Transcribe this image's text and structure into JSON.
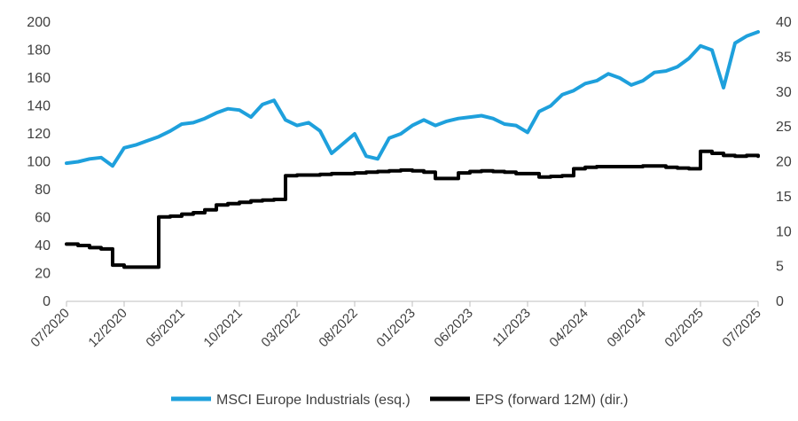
{
  "chart_data": {
    "type": "line",
    "title": "",
    "xlabel": "",
    "ylabel": "",
    "x_ticks": [
      "07/2020",
      "12/2020",
      "05/2021",
      "10/2021",
      "03/2022",
      "08/2022",
      "01/2023",
      "06/2023",
      "11/2023",
      "04/2024",
      "09/2024",
      "02/2025",
      "07/2025"
    ],
    "y_left": {
      "min": 0,
      "max": 200,
      "step": 20,
      "ticks": [
        "0",
        "20",
        "40",
        "60",
        "80",
        "100",
        "120",
        "140",
        "160",
        "180",
        "200"
      ]
    },
    "y_right": {
      "min": 0,
      "max": 40,
      "step": 5,
      "ticks": [
        "0",
        "5",
        "10",
        "15",
        "20",
        "25",
        "30",
        "35",
        "40"
      ]
    },
    "grid": false,
    "legend_position": "bottom",
    "series": [
      {
        "name": "MSCI Europe Industrials (esq.)",
        "axis": "left",
        "color": "#1ea0dc",
        "x": [
          "07/2020",
          "08/2020",
          "09/2020",
          "10/2020",
          "11/2020",
          "12/2020",
          "01/2021",
          "02/2021",
          "03/2021",
          "04/2021",
          "05/2021",
          "06/2021",
          "07/2021",
          "08/2021",
          "09/2021",
          "10/2021",
          "11/2021",
          "12/2021",
          "01/2022",
          "02/2022",
          "03/2022",
          "04/2022",
          "05/2022",
          "06/2022",
          "07/2022",
          "08/2022",
          "09/2022",
          "10/2022",
          "11/2022",
          "12/2022",
          "01/2023",
          "02/2023",
          "03/2023",
          "04/2023",
          "05/2023",
          "06/2023",
          "07/2023",
          "08/2023",
          "09/2023",
          "10/2023",
          "11/2023",
          "12/2023",
          "01/2024",
          "02/2024",
          "03/2024",
          "04/2024",
          "05/2024",
          "06/2024",
          "07/2024",
          "08/2024",
          "09/2024",
          "10/2024",
          "11/2024",
          "12/2024",
          "01/2025",
          "02/2025",
          "03/2025",
          "04/2025",
          "05/2025",
          "06/2025",
          "07/2025"
        ],
        "values": [
          99,
          100,
          102,
          103,
          97,
          110,
          112,
          115,
          118,
          122,
          127,
          128,
          131,
          135,
          138,
          137,
          132,
          141,
          144,
          130,
          126,
          128,
          122,
          106,
          113,
          120,
          104,
          102,
          117,
          120,
          126,
          130,
          126,
          129,
          131,
          132,
          133,
          131,
          127,
          126,
          121,
          136,
          140,
          148,
          151,
          156,
          158,
          163,
          160,
          155,
          158,
          164,
          165,
          168,
          174,
          183,
          180,
          153,
          185,
          190,
          193
        ]
      },
      {
        "name": "EPS (forward 12M) (dir.)",
        "axis": "right",
        "color": "#000000",
        "x": [
          "07/2020",
          "08/2020",
          "09/2020",
          "10/2020",
          "11/2020",
          "12/2020",
          "01/2021",
          "02/2021",
          "03/2021",
          "04/2021",
          "05/2021",
          "06/2021",
          "07/2021",
          "08/2021",
          "09/2021",
          "10/2021",
          "11/2021",
          "12/2021",
          "01/2022",
          "02/2022",
          "03/2022",
          "04/2022",
          "05/2022",
          "06/2022",
          "07/2022",
          "08/2022",
          "09/2022",
          "10/2022",
          "11/2022",
          "12/2022",
          "01/2023",
          "02/2023",
          "03/2023",
          "04/2023",
          "05/2023",
          "06/2023",
          "07/2023",
          "08/2023",
          "09/2023",
          "10/2023",
          "11/2023",
          "12/2023",
          "01/2024",
          "02/2024",
          "03/2024",
          "04/2024",
          "05/2024",
          "06/2024",
          "07/2024",
          "08/2024",
          "09/2024",
          "10/2024",
          "11/2024",
          "12/2024",
          "01/2025",
          "02/2025",
          "03/2025",
          "04/2025",
          "05/2025",
          "06/2025",
          "07/2025"
        ],
        "values": [
          8.2,
          8.0,
          7.7,
          7.5,
          5.2,
          4.9,
          4.9,
          4.9,
          12.1,
          12.2,
          12.5,
          12.7,
          13.1,
          13.8,
          14.0,
          14.2,
          14.4,
          14.5,
          14.6,
          18.0,
          18.1,
          18.1,
          18.2,
          18.3,
          18.3,
          18.4,
          18.5,
          18.6,
          18.7,
          18.8,
          18.7,
          18.5,
          17.6,
          17.6,
          18.4,
          18.6,
          18.7,
          18.6,
          18.5,
          18.3,
          18.3,
          17.8,
          17.9,
          18.0,
          19.0,
          19.2,
          19.3,
          19.3,
          19.3,
          19.3,
          19.4,
          19.4,
          19.2,
          19.1,
          19.0,
          21.5,
          21.2,
          20.9,
          20.8,
          20.9,
          20.8
        ]
      }
    ]
  }
}
